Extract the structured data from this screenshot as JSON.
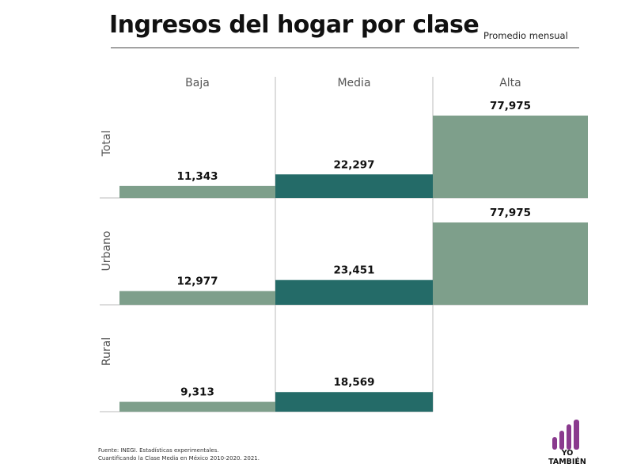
{
  "header": {
    "title": "Ingresos del hogar por clase",
    "subtitle": "Promedio mensual"
  },
  "chart_data": {
    "type": "bar",
    "title": "Ingresos del hogar por clase",
    "subtitle": "Promedio mensual",
    "columns": [
      "Baja",
      "Media",
      "Alta"
    ],
    "rows": [
      "Total",
      "Urbano",
      "Rural"
    ],
    "series": [
      {
        "name": "Total",
        "values": [
          11343,
          22297,
          77975
        ],
        "labels": [
          "11,343",
          "22,297",
          "77,975"
        ]
      },
      {
        "name": "Urbano",
        "values": [
          12977,
          23451,
          77975
        ],
        "labels": [
          "12,977",
          "23,451",
          "77,975"
        ]
      },
      {
        "name": "Rural",
        "values": [
          9313,
          18569,
          null
        ],
        "labels": [
          "9,313",
          "18,569",
          ""
        ]
      }
    ],
    "colors": {
      "baja": "#7e9f8b",
      "media": "#246b68",
      "alta": "#7e9f8b",
      "divider": "#bbbbbb"
    }
  },
  "footer": {
    "source_line1": "Fuente: INEGI. Estadísticas experimentales.",
    "source_line2": "Cuantificando la Clase Media en México 2010-2020. 2021."
  },
  "logo": {
    "line1": "YO",
    "line2": "TAMBIÉN",
    "color": "#8a3a8e"
  }
}
